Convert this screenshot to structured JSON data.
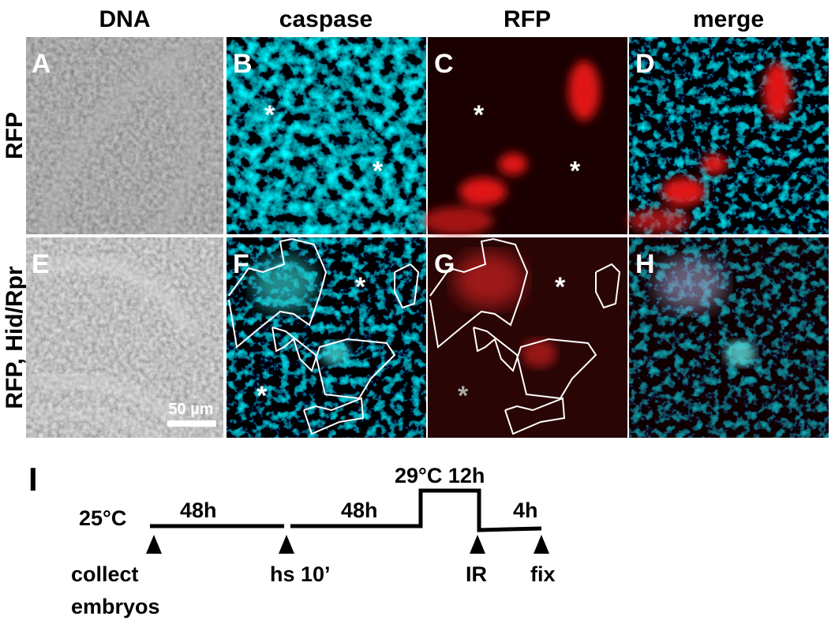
{
  "columns": [
    "DNA",
    "caspase",
    "RFP",
    "merge"
  ],
  "rows": [
    "RFP",
    "RFP, Hid/Rpr"
  ],
  "panels": [
    "A",
    "B",
    "C",
    "D",
    "E",
    "F",
    "G",
    "H"
  ],
  "scale_bar": "50 µm",
  "asterisk": "*",
  "timeline": {
    "panel": "I",
    "start_temp": "25°C",
    "durations": [
      "48h",
      "48h",
      "4h"
    ],
    "shift": "29°C 12h",
    "events": [
      [
        "collect",
        "embryos"
      ],
      [
        "hs 10’"
      ],
      [
        "IR"
      ],
      [
        "fix"
      ]
    ]
  }
}
